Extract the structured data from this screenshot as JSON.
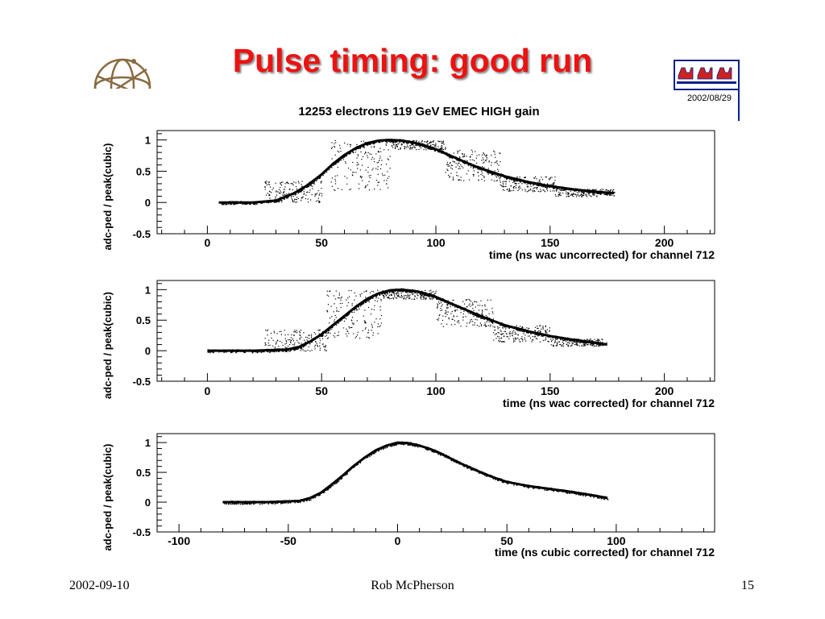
{
  "slide": {
    "title": "Pulse timing: good run",
    "date_stamp": "2002/08/29",
    "figure_title": "12253 electrons 119 GeV EMEC HIGH gain"
  },
  "footer": {
    "date": "2002-09-10",
    "author": "Rob McPherson",
    "page": "15"
  },
  "colors": {
    "title": "#ee1111",
    "axes": "#000000",
    "points": "#000000",
    "logo_blue": "#0a1e8c",
    "logo_red": "#cc2222"
  },
  "chart_data": [
    {
      "type": "scatter",
      "title": "",
      "xlabel": "time (ns wac uncorrected) for channel 712",
      "ylabel": "adc-ped / peak(cubic)",
      "xlim": [
        -22,
        222
      ],
      "ylim": [
        -0.5,
        1.15
      ],
      "xticks": [
        0,
        50,
        100,
        150,
        200
      ],
      "yticks": [
        -0.5,
        0,
        0.5,
        1
      ],
      "xtick_labels": [
        "0",
        "50",
        "100",
        "150",
        "200"
      ],
      "ytick_labels": [
        "-0.5",
        "0",
        "0.5",
        "1"
      ],
      "trend": {
        "x": [
          5,
          20,
          30,
          38,
          44,
          50,
          55,
          60,
          65,
          70,
          75,
          80,
          85,
          90,
          95,
          100,
          105,
          110,
          115,
          120,
          125,
          130,
          140,
          150,
          160,
          170,
          178
        ],
        "y": [
          0.0,
          0.0,
          0.03,
          0.15,
          0.28,
          0.45,
          0.62,
          0.76,
          0.87,
          0.95,
          0.99,
          1.0,
          0.99,
          0.96,
          0.91,
          0.85,
          0.77,
          0.69,
          0.61,
          0.54,
          0.48,
          0.42,
          0.33,
          0.26,
          0.21,
          0.17,
          0.15
        ]
      },
      "bands": [
        {
          "x0": 25,
          "x1": 50,
          "y0": 0.0,
          "y1": 0.35
        },
        {
          "x0": 54,
          "x1": 80,
          "y0": 0.2,
          "y1": 1.0
        },
        {
          "x0": 80,
          "x1": 104,
          "y0": 0.85,
          "y1": 1.0
        },
        {
          "x0": 104,
          "x1": 128,
          "y0": 0.35,
          "y1": 0.85
        },
        {
          "x0": 128,
          "x1": 152,
          "y0": 0.18,
          "y1": 0.42
        },
        {
          "x0": 152,
          "x1": 178,
          "y0": 0.1,
          "y1": 0.22
        }
      ]
    },
    {
      "type": "scatter",
      "title": "",
      "xlabel": "time (ns wac corrected) for channel 712",
      "ylabel": "adc-ped / peak(cubic)",
      "xlim": [
        -22,
        222
      ],
      "ylim": [
        -0.5,
        1.15
      ],
      "xticks": [
        0,
        50,
        100,
        150,
        200
      ],
      "yticks": [
        -0.5,
        0,
        0.5,
        1
      ],
      "xtick_labels": [
        "0",
        "50",
        "100",
        "150",
        "200"
      ],
      "ytick_labels": [
        "-0.5",
        "0",
        "0.5",
        "1"
      ],
      "trend": {
        "x": [
          0,
          20,
          35,
          40,
          45,
          50,
          55,
          60,
          65,
          70,
          75,
          80,
          85,
          90,
          95,
          100,
          105,
          110,
          115,
          120,
          125,
          130,
          140,
          150,
          160,
          170,
          175
        ],
        "y": [
          0.0,
          0.0,
          0.02,
          0.06,
          0.15,
          0.27,
          0.42,
          0.57,
          0.72,
          0.85,
          0.94,
          0.99,
          1.0,
          0.98,
          0.94,
          0.88,
          0.8,
          0.72,
          0.64,
          0.56,
          0.49,
          0.42,
          0.32,
          0.24,
          0.18,
          0.13,
          0.1
        ]
      },
      "bands": [
        {
          "x0": 25,
          "x1": 52,
          "y0": 0.0,
          "y1": 0.35
        },
        {
          "x0": 52,
          "x1": 76,
          "y0": 0.2,
          "y1": 1.0
        },
        {
          "x0": 76,
          "x1": 100,
          "y0": 0.85,
          "y1": 1.0
        },
        {
          "x0": 100,
          "x1": 125,
          "y0": 0.4,
          "y1": 0.85
        },
        {
          "x0": 125,
          "x1": 150,
          "y0": 0.15,
          "y1": 0.42
        },
        {
          "x0": 150,
          "x1": 175,
          "y0": 0.08,
          "y1": 0.2
        }
      ]
    },
    {
      "type": "scatter",
      "title": "",
      "xlabel": "time (ns cubic corrected) for channel 712",
      "ylabel": "adc-ped / peak(cubic)",
      "xlim": [
        -110,
        145
      ],
      "ylim": [
        -0.5,
        1.15
      ],
      "xticks": [
        -100,
        -50,
        0,
        50,
        100
      ],
      "yticks": [
        -0.5,
        0,
        0.5,
        1
      ],
      "xtick_labels": [
        "-100",
        "-50",
        "0",
        "50",
        "100"
      ],
      "ytick_labels": [
        "-0.5",
        "0",
        "0.5",
        "1"
      ],
      "trend": {
        "x": [
          -80,
          -60,
          -45,
          -40,
          -35,
          -30,
          -25,
          -20,
          -15,
          -10,
          -5,
          0,
          5,
          10,
          15,
          20,
          25,
          30,
          35,
          40,
          45,
          50,
          60,
          70,
          80,
          90,
          96
        ],
        "y": [
          0.0,
          0.0,
          0.02,
          0.07,
          0.16,
          0.3,
          0.45,
          0.61,
          0.75,
          0.87,
          0.95,
          1.0,
          0.99,
          0.95,
          0.89,
          0.81,
          0.72,
          0.63,
          0.55,
          0.47,
          0.4,
          0.34,
          0.27,
          0.22,
          0.17,
          0.11,
          0.07
        ]
      },
      "bands": []
    }
  ]
}
